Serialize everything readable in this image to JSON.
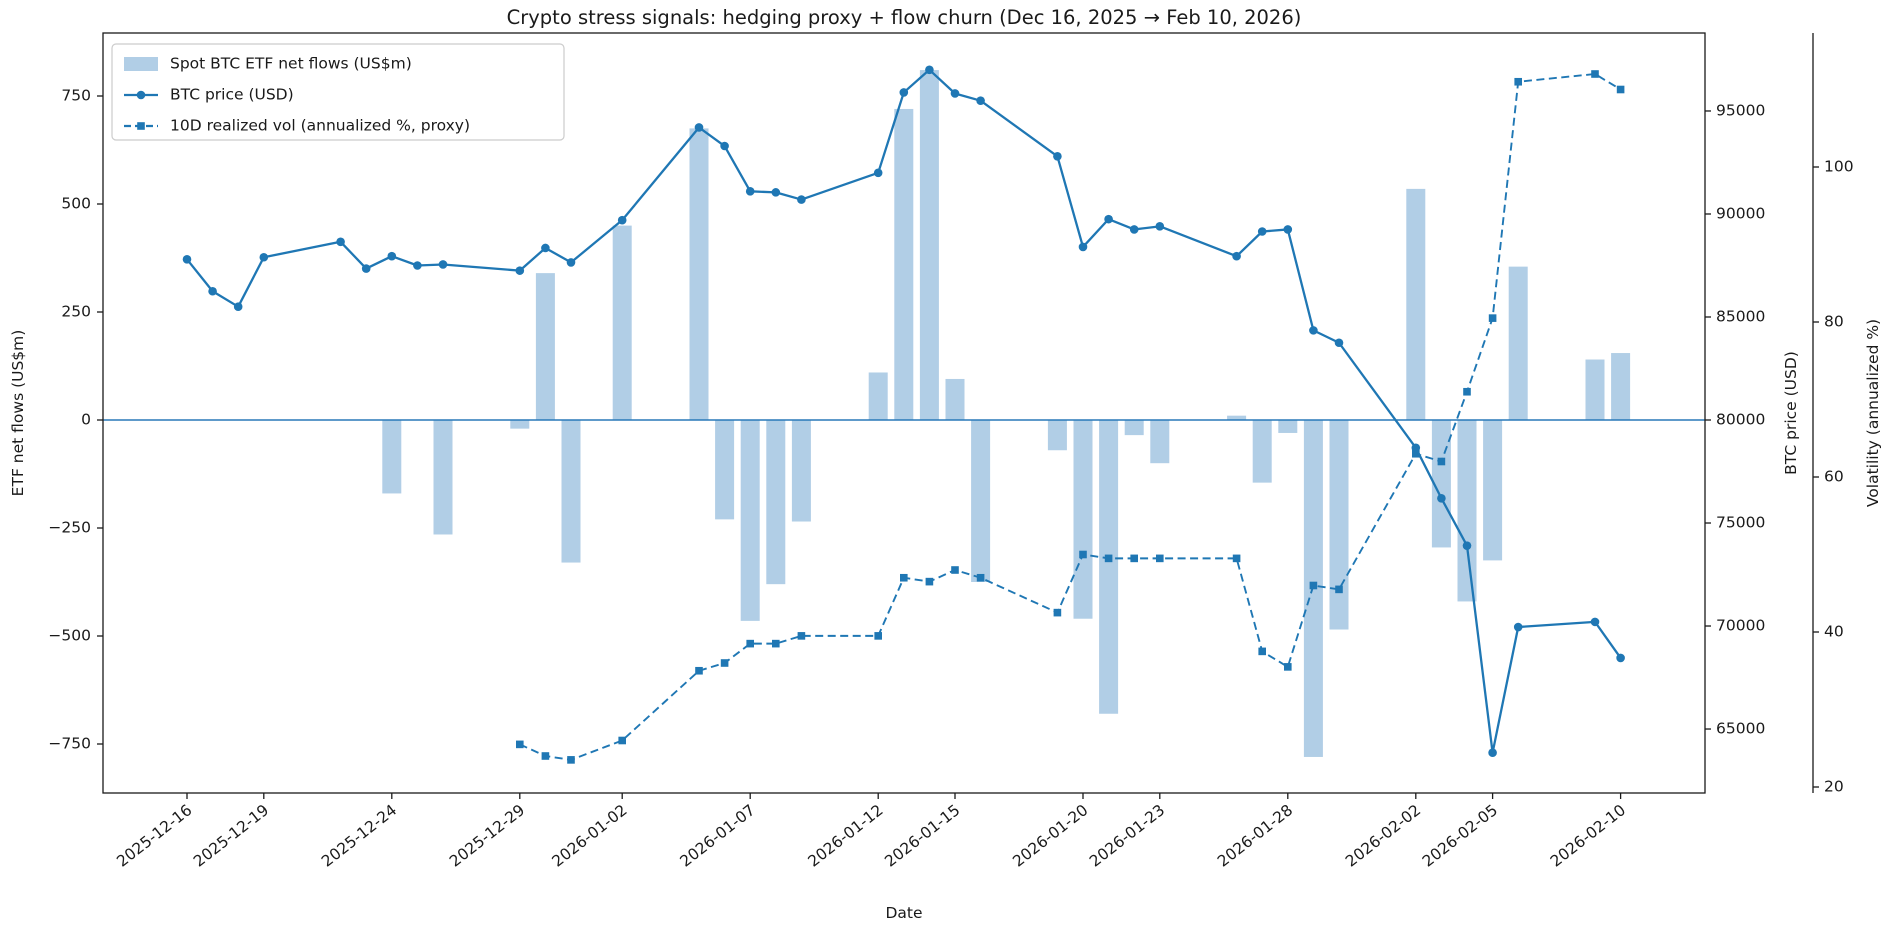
{
  "title": "Crypto stress signals: hedging proxy + flow churn (Dec 16, 2025 → Feb 10, 2026)",
  "colors": {
    "line_blue": "#1f77b4",
    "bar_fill": "#b1cee6",
    "zero_line": "#2879b8",
    "spine": "#1a1a1a",
    "legend_border": "#cccccc"
  },
  "chart_data": {
    "type": "combo",
    "title": "Crypto stress signals: hedging proxy + flow churn (Dec 16, 2025 → Feb 10, 2026)",
    "xlabel": "Date",
    "grid": false,
    "legend_position": "upper-left",
    "x_tick_labels": [
      "2025-12-16",
      "2025-12-19",
      "2025-12-24",
      "2025-12-29",
      "2026-01-02",
      "2026-01-07",
      "2026-01-12",
      "2026-01-15",
      "2026-01-20",
      "2026-01-23",
      "2026-01-28",
      "2026-02-02",
      "2026-02-05",
      "2026-02-10"
    ],
    "axes": {
      "flows": {
        "label": "ETF net flows (US$m)",
        "ticks": [
          750,
          500,
          250,
          0,
          -250,
          -500,
          -750
        ],
        "range": [
          -865,
          895
        ]
      },
      "price": {
        "label": "BTC price (USD)",
        "ticks": [
          95000,
          90000,
          85000,
          80000,
          75000,
          70000,
          65000
        ],
        "range": [
          61900,
          98800
        ]
      },
      "vol": {
        "label": "Volatility (annualized %)",
        "ticks": [
          100,
          80,
          60,
          40,
          20
        ],
        "range": [
          19,
          117
        ]
      }
    },
    "series": [
      {
        "name": "Spot BTC ETF net flows (US$m)",
        "type": "bar",
        "axis": "flows",
        "dates": [
          "2025-12-16",
          "2025-12-17",
          "2025-12-18",
          "2025-12-19",
          "2025-12-22",
          "2025-12-23",
          "2025-12-24",
          "2025-12-25",
          "2025-12-26",
          "2025-12-29",
          "2025-12-30",
          "2025-12-31",
          "2026-01-02",
          "2026-01-05",
          "2026-01-06",
          "2026-01-07",
          "2026-01-08",
          "2026-01-09",
          "2026-01-12",
          "2026-01-13",
          "2026-01-14",
          "2026-01-15",
          "2026-01-16",
          "2026-01-19",
          "2026-01-20",
          "2026-01-21",
          "2026-01-22",
          "2026-01-23",
          "2026-01-26",
          "2026-01-27",
          "2026-01-28",
          "2026-01-29",
          "2026-01-30",
          "2026-02-02",
          "2026-02-03",
          "2026-02-04",
          "2026-02-05",
          "2026-02-06",
          "2026-02-09",
          "2026-02-10"
        ],
        "values": [
          0,
          0,
          0,
          0,
          0,
          0,
          -170,
          0,
          -265,
          -20,
          340,
          -330,
          450,
          675,
          -230,
          -465,
          -380,
          -235,
          110,
          720,
          810,
          95,
          -375,
          -70,
          -460,
          -680,
          -35,
          -100,
          10,
          -145,
          -30,
          -780,
          -485,
          535,
          -295,
          -420,
          -325,
          355,
          140,
          155
        ]
      },
      {
        "name": "BTC price (USD)",
        "type": "line",
        "marker": "circle",
        "axis": "price",
        "dates": [
          "2025-12-16",
          "2025-12-17",
          "2025-12-18",
          "2025-12-19",
          "2025-12-22",
          "2025-12-23",
          "2025-12-24",
          "2025-12-25",
          "2025-12-26",
          "2025-12-29",
          "2025-12-30",
          "2025-12-31",
          "2026-01-02",
          "2026-01-05",
          "2026-01-06",
          "2026-01-07",
          "2026-01-08",
          "2026-01-09",
          "2026-01-12",
          "2026-01-13",
          "2026-01-14",
          "2026-01-15",
          "2026-01-16",
          "2026-01-19",
          "2026-01-20",
          "2026-01-21",
          "2026-01-22",
          "2026-01-23",
          "2026-01-26",
          "2026-01-27",
          "2026-01-28",
          "2026-01-29",
          "2026-01-30",
          "2026-02-02",
          "2026-02-03",
          "2026-02-04",
          "2026-02-05",
          "2026-02-06",
          "2026-02-09",
          "2026-02-10"
        ],
        "values": [
          87800,
          86250,
          85500,
          87900,
          88650,
          87350,
          87950,
          87500,
          87550,
          87250,
          88350,
          87650,
          89700,
          94200,
          93300,
          91100,
          91050,
          90700,
          92000,
          95900,
          97000,
          95850,
          95500,
          92800,
          88400,
          89750,
          89250,
          89400,
          87950,
          89150,
          89250,
          84350,
          83750,
          78650,
          76200,
          73900,
          63850,
          69950,
          70200,
          68450
        ]
      },
      {
        "name": "10D realized vol (annualized %, proxy)",
        "type": "dashed-line",
        "marker": "square",
        "axis": "vol",
        "dates": [
          "2025-12-29",
          "2025-12-30",
          "2025-12-31",
          "2026-01-02",
          "2026-01-05",
          "2026-01-06",
          "2026-01-07",
          "2026-01-08",
          "2026-01-09",
          "2026-01-12",
          "2026-01-13",
          "2026-01-14",
          "2026-01-15",
          "2026-01-16",
          "2026-01-19",
          "2026-01-20",
          "2026-01-21",
          "2026-01-22",
          "2026-01-23",
          "2026-01-26",
          "2026-01-27",
          "2026-01-28",
          "2026-01-29",
          "2026-01-30",
          "2026-02-02",
          "2026-02-03",
          "2026-02-04",
          "2026-02-05",
          "2026-02-06",
          "2026-02-09",
          "2026-02-10"
        ],
        "values": [
          25.5,
          24,
          23.5,
          26,
          35,
          36,
          38.5,
          38.5,
          39.5,
          39.5,
          47,
          46.5,
          48,
          47,
          42.5,
          50,
          49.5,
          49.5,
          49.5,
          49.5,
          37.5,
          35.5,
          46,
          45.5,
          63,
          62,
          71,
          80.5,
          111,
          112,
          110
        ]
      }
    ]
  }
}
